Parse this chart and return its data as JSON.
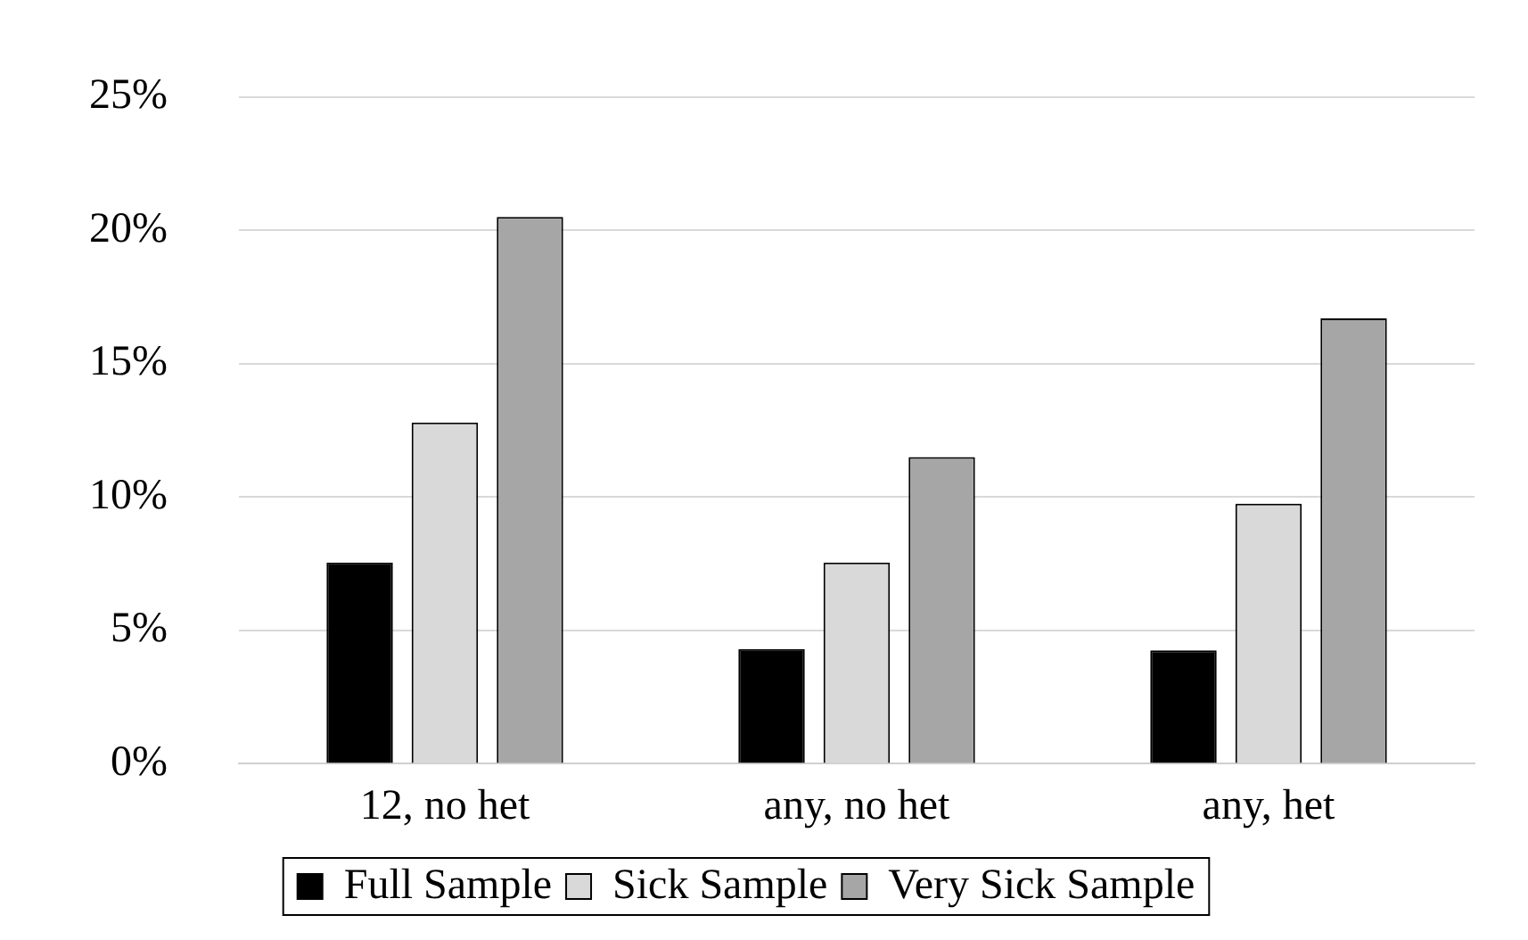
{
  "chart_data": {
    "type": "bar",
    "categories": [
      "12, no het",
      "any, no het",
      "any, het"
    ],
    "series": [
      {
        "name": "Full Sample",
        "color": "#000000",
        "values": [
          7.55,
          4.3,
          4.25
        ]
      },
      {
        "name": "Sick Sample",
        "color": "#d9d9d9",
        "values": [
          12.8,
          7.55,
          9.75
        ]
      },
      {
        "name": "Very Sick Sample",
        "color": "#a6a6a6",
        "values": [
          20.5,
          11.5,
          16.7
        ]
      }
    ],
    "ylim": [
      0,
      25
    ],
    "yticks": [
      {
        "value": 0,
        "label": "0%"
      },
      {
        "value": 5,
        "label": "5%"
      },
      {
        "value": 10,
        "label": "10%"
      },
      {
        "value": 15,
        "label": "15%"
      },
      {
        "value": 20,
        "label": "20%"
      },
      {
        "value": 25,
        "label": "25%"
      }
    ],
    "grid": "y",
    "legend": "bottom"
  }
}
